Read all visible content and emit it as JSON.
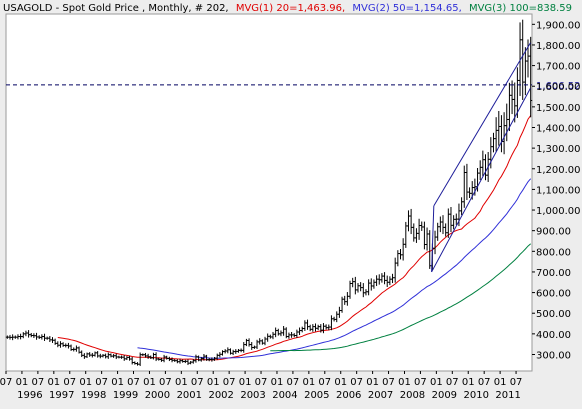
{
  "header": {
    "symbol_text": "USAGOLD - Spot Gold Price , Monthly, # 202,",
    "mvg1_text": "MVG(1) 20=1,463.96,",
    "mvg2_text": "MVG(2) 50=1,154.65,",
    "mvg3_text": "MVG(3) 100=838.59"
  },
  "colors": {
    "background": "#ededed",
    "plot_bg": "#ffffff",
    "price_bars": "#000000",
    "mvg1": "#e00000",
    "mvg2": "#3030d8",
    "mvg3": "#008040",
    "channel": "#1e1e9a",
    "reference_line": "#000060",
    "reference_label": "#1e1e9a"
  },
  "chart_data": {
    "type": "ohlc",
    "ylim": [
      220,
      1950
    ],
    "xlim": [
      1995.5,
      2012.0
    ],
    "y_ticks": [
      300,
      400,
      500,
      600,
      700,
      800,
      900,
      1000,
      1100,
      1200,
      1300,
      1400,
      1500,
      1600,
      1700,
      1800,
      1900
    ],
    "y_tick_labels": [
      "300.00",
      "400.00",
      "500.00",
      "600.00",
      "700.00",
      "800.00",
      "900.00",
      "1,000.00",
      "1,100.00",
      "1,200.00",
      "1,300.00",
      "1,400.00",
      "1,500.00",
      "1,600.00",
      "1,700.00",
      "1,800.00",
      "1,900.00"
    ],
    "reference_line": {
      "value": 1606.52,
      "label": "1,606.52"
    },
    "x_ticks": [
      {
        "x": 1995.5,
        "label": "07"
      },
      {
        "x": 1996.0,
        "label": "01"
      },
      {
        "x": 1996.5,
        "label": "07"
      },
      {
        "x": 1997.0,
        "label": "01"
      },
      {
        "x": 1997.5,
        "label": "07"
      },
      {
        "x": 1998.0,
        "label": "01"
      },
      {
        "x": 1998.5,
        "label": "07"
      },
      {
        "x": 1999.0,
        "label": "01"
      },
      {
        "x": 1999.5,
        "label": "07"
      },
      {
        "x": 2000.0,
        "label": "01"
      },
      {
        "x": 2000.5,
        "label": "07"
      },
      {
        "x": 2001.0,
        "label": "01"
      },
      {
        "x": 2001.5,
        "label": "07"
      },
      {
        "x": 2002.0,
        "label": "01"
      },
      {
        "x": 2002.5,
        "label": "07"
      },
      {
        "x": 2003.0,
        "label": "01"
      },
      {
        "x": 2003.5,
        "label": "07"
      },
      {
        "x": 2004.0,
        "label": "01"
      },
      {
        "x": 2004.5,
        "label": "07"
      },
      {
        "x": 2005.0,
        "label": "01"
      },
      {
        "x": 2005.5,
        "label": "07"
      },
      {
        "x": 2006.0,
        "label": "01"
      },
      {
        "x": 2006.5,
        "label": "07"
      },
      {
        "x": 2007.0,
        "label": "01"
      },
      {
        "x": 2007.5,
        "label": "07"
      },
      {
        "x": 2008.0,
        "label": "01"
      },
      {
        "x": 2008.5,
        "label": "07"
      },
      {
        "x": 2009.0,
        "label": "01"
      },
      {
        "x": 2009.5,
        "label": "07"
      },
      {
        "x": 2010.0,
        "label": "01"
      },
      {
        "x": 2010.5,
        "label": "07"
      },
      {
        "x": 2011.0,
        "label": "01"
      },
      {
        "x": 2011.5,
        "label": "07"
      }
    ],
    "year_labels": [
      {
        "x": 1996.0,
        "label": "1996"
      },
      {
        "x": 1997.0,
        "label": "1997"
      },
      {
        "x": 1998.0,
        "label": "1998"
      },
      {
        "x": 1999.0,
        "label": "1999"
      },
      {
        "x": 2000.0,
        "label": "2000"
      },
      {
        "x": 2001.0,
        "label": "2001"
      },
      {
        "x": 2002.0,
        "label": "2002"
      },
      {
        "x": 2003.0,
        "label": "2003"
      },
      {
        "x": 2004.0,
        "label": "2004"
      },
      {
        "x": 2005.0,
        "label": "2005"
      },
      {
        "x": 2006.0,
        "label": "2006"
      },
      {
        "x": 2007.0,
        "label": "2007"
      },
      {
        "x": 2008.0,
        "label": "2008"
      },
      {
        "x": 2009.0,
        "label": "2009"
      },
      {
        "x": 2010.0,
        "label": "2010"
      },
      {
        "x": 2011.0,
        "label": "2011"
      }
    ],
    "price_series": {
      "name": "Spot Gold Price",
      "start": "1995-07",
      "close": [
        384,
        383,
        384,
        384,
        387,
        387,
        400,
        404,
        396,
        392,
        391,
        385,
        383,
        387,
        379,
        379,
        371,
        369,
        354,
        345,
        352,
        344,
        344,
        341,
        324,
        325,
        332,
        311,
        296,
        289,
        303,
        297,
        296,
        308,
        293,
        292,
        296,
        289,
        299,
        292,
        294,
        288,
        287,
        287,
        279,
        286,
        278,
        261,
        256,
        253,
        299,
        299,
        293,
        289,
        284,
        300,
        278,
        276,
        272,
        288,
        281,
        276,
        272,
        270,
        265,
        270,
        266,
        267,
        258,
        263,
        270,
        289,
        273,
        280,
        292,
        275,
        276,
        275,
        282,
        296,
        301,
        314,
        317,
        323,
        306,
        314,
        315,
        320,
        320,
        348,
        368,
        348,
        334,
        336,
        361,
        366,
        355,
        375,
        388,
        385,
        398,
        416,
        400,
        405,
        423,
        387,
        395,
        395,
        392,
        409,
        416,
        426,
        453,
        435,
        422,
        435,
        427,
        435,
        418,
        437,
        430,
        433,
        473,
        470,
        495,
        513,
        568,
        556,
        582,
        644,
        653,
        613,
        633,
        624,
        599,
        604,
        646,
        632,
        650,
        665,
        662,
        680,
        659,
        650,
        665,
        672,
        743,
        789,
        783,
        834,
        923,
        971,
        916,
        865,
        887,
        925,
        918,
        833,
        884,
        730,
        815,
        869,
        919,
        942,
        916,
        890,
        980,
        926,
        955,
        956,
        996,
        1040,
        1182,
        1087,
        1081,
        1109,
        1113,
        1179,
        1207,
        1244,
        1169,
        1246,
        1307,
        1346,
        1386,
        1405,
        1332,
        1409,
        1439,
        1556,
        1536,
        1505,
        1628,
        1825,
        1620,
        1722,
        1746,
        1531
      ]
    },
    "ohlc_range_note": "each monthly bar spans roughly 4-8% around the close; recent bars wider",
    "series": [
      {
        "name": "MVG(1) 20",
        "last_value": 1463.96
      },
      {
        "name": "MVG(2) 50",
        "last_value": 1154.65
      },
      {
        "name": "MVG(3) 100",
        "last_value": 838.59
      }
    ],
    "channel_lines": [
      {
        "from": {
          "x": 2008.85,
          "y": 700
        },
        "to": {
          "x": 2011.95,
          "y": 1590
        }
      },
      {
        "from": {
          "x": 2008.92,
          "y": 1020
        },
        "to": {
          "x": 2011.95,
          "y": 1810
        }
      }
    ],
    "grid": false
  }
}
